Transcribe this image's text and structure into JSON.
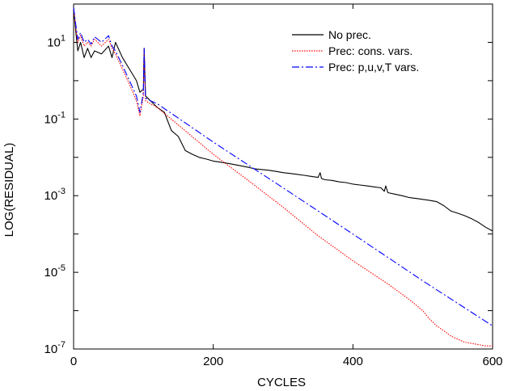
{
  "chart_data": {
    "type": "line",
    "title": "",
    "xlabel": "CYCLES",
    "ylabel": "LOG(RESIDUAL)",
    "xlim": [
      0,
      600
    ],
    "ylim": [
      1e-07,
      100
    ],
    "y_scale": "log",
    "grid": false,
    "legend_position": "top-right",
    "x_ticks": [
      {
        "value": 0,
        "label": "0"
      },
      {
        "value": 200,
        "label": "200"
      },
      {
        "value": 400,
        "label": "400"
      },
      {
        "value": 600,
        "label": "600"
      }
    ],
    "y_ticks": [
      {
        "value": 1e-07,
        "base": "10",
        "exp": "-7"
      },
      {
        "value": 1e-05,
        "base": "10",
        "exp": "-5"
      },
      {
        "value": 0.001,
        "base": "10",
        "exp": "-3"
      },
      {
        "value": 0.1,
        "base": "10",
        "exp": "-1"
      },
      {
        "value": 10,
        "base": "10",
        "exp": "1"
      }
    ],
    "series": [
      {
        "name": "No prec.",
        "color": "#000000",
        "dash": "solid",
        "x": [
          0,
          3,
          6,
          10,
          15,
          20,
          25,
          30,
          40,
          50,
          55,
          60,
          70,
          80,
          90,
          95,
          100,
          101,
          103,
          110,
          120,
          130,
          140,
          150,
          160,
          170,
          180,
          190,
          200,
          210,
          220,
          230,
          240,
          250,
          260,
          270,
          280,
          290,
          300,
          310,
          320,
          330,
          340,
          350,
          353,
          355,
          360,
          370,
          380,
          390,
          400,
          410,
          420,
          430,
          440,
          445,
          447,
          450,
          460,
          470,
          480,
          490,
          500,
          510,
          520,
          530,
          540,
          550,
          560,
          570,
          580,
          590,
          600
        ],
        "y": [
          80,
          20,
          6,
          10,
          4,
          7,
          4,
          6,
          5,
          8,
          4,
          10,
          4,
          2,
          1,
          0.5,
          0.6,
          7,
          0.4,
          0.3,
          0.2,
          0.15,
          0.05,
          0.035,
          0.015,
          0.012,
          0.01,
          0.009,
          0.008,
          0.0075,
          0.007,
          0.0065,
          0.006,
          0.0055,
          0.005,
          0.0048,
          0.0046,
          0.0043,
          0.004,
          0.0038,
          0.0036,
          0.0034,
          0.0032,
          0.003,
          0.004,
          0.0028,
          0.0026,
          0.0025,
          0.0023,
          0.0022,
          0.002,
          0.0019,
          0.0018,
          0.0017,
          0.0016,
          0.0013,
          0.0018,
          0.0012,
          0.0011,
          0.001,
          0.0009,
          0.00085,
          0.0008,
          0.00075,
          0.0007,
          0.00055,
          0.0004,
          0.00035,
          0.0003,
          0.00025,
          0.0002,
          0.00015,
          0.00012
        ]
      },
      {
        "name": "Prec: cons. vars.",
        "color": "#ff0000",
        "dash": "dotted",
        "x": [
          0,
          3,
          6,
          10,
          15,
          20,
          25,
          30,
          40,
          50,
          55,
          60,
          70,
          80,
          90,
          95,
          100,
          101,
          103,
          110,
          120,
          150,
          200,
          250,
          300,
          350,
          400,
          450,
          480,
          500,
          510,
          520,
          530,
          540,
          550,
          560,
          570,
          580,
          590,
          600
        ],
        "y": [
          80,
          25,
          10,
          15,
          8,
          10,
          8,
          12,
          8,
          12,
          7,
          5,
          2,
          0.8,
          0.3,
          0.12,
          0.4,
          7,
          0.3,
          0.25,
          0.2,
          0.07,
          0.012,
          0.0025,
          0.0005,
          9e-05,
          2e-05,
          5e-06,
          2e-06,
          1e-06,
          6e-07,
          4e-07,
          3e-07,
          2.2e-07,
          1.8e-07,
          1.5e-07,
          1.4e-07,
          1.3e-07,
          1.2e-07,
          1.2e-07
        ]
      },
      {
        "name": "Prec: p,u,v,T vars.",
        "color": "#0000ff",
        "dash": "dashdot",
        "x": [
          0,
          3,
          6,
          10,
          15,
          20,
          25,
          30,
          40,
          50,
          55,
          60,
          70,
          80,
          90,
          95,
          100,
          101,
          103,
          110,
          120,
          200,
          300,
          400,
          500,
          600
        ],
        "y": [
          80,
          30,
          12,
          18,
          10,
          12,
          9,
          14,
          10,
          15,
          8,
          6,
          2.5,
          1,
          0.4,
          0.15,
          0.5,
          7,
          0.35,
          0.3,
          0.25,
          0.025,
          0.0016,
          0.0001,
          6e-06,
          4e-07
        ]
      }
    ]
  }
}
